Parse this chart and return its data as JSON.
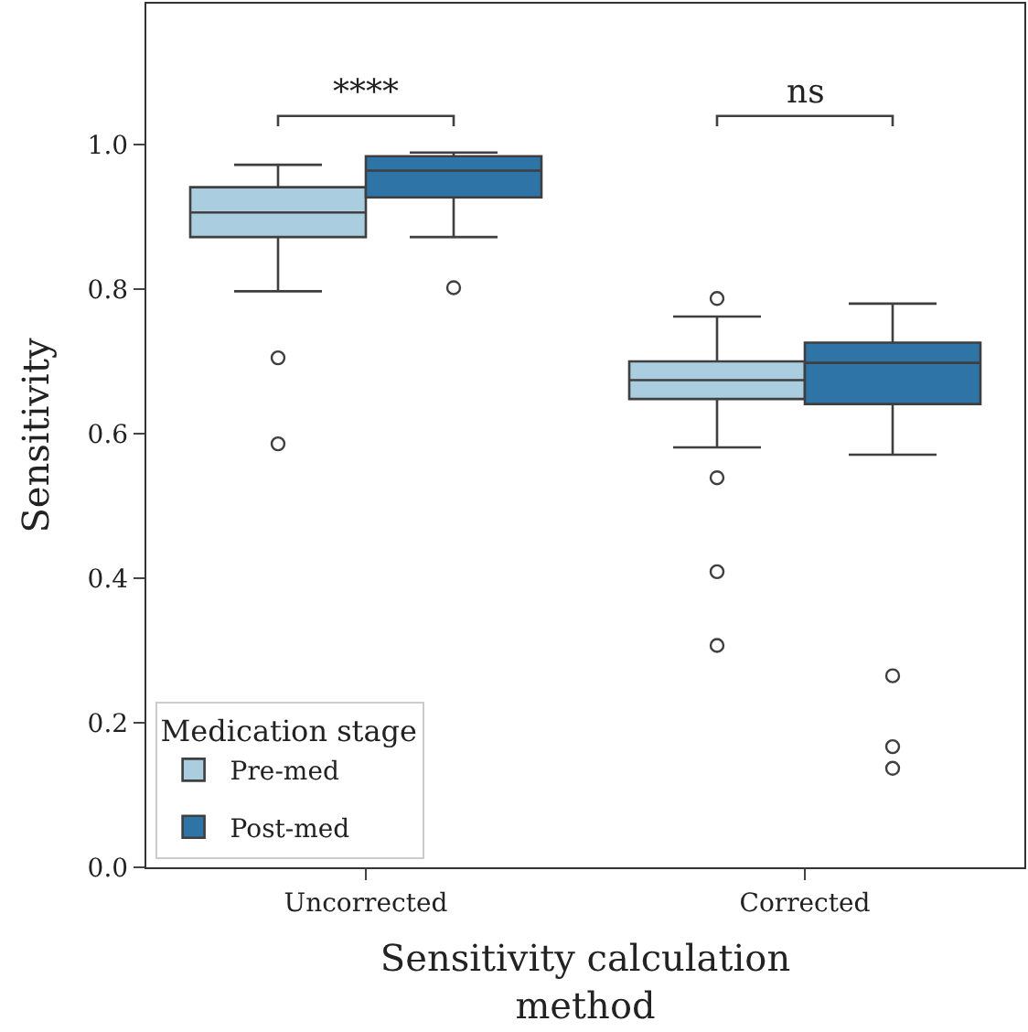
{
  "chart_data": {
    "type": "box",
    "categories": [
      "Uncorrected",
      "Corrected"
    ],
    "xlabel": "Sensitivity calculation\nmethod",
    "ylabel": "Sensitivity",
    "legend_title": "Medication stage",
    "ylim": [
      0,
      1.195
    ],
    "yticks": [
      {
        "value": 0,
        "label": "0.0"
      },
      0.2,
      0.4,
      0.6,
      0.8,
      {
        "value": 1,
        "label": "1.0"
      }
    ],
    "legend": "bottom left",
    "marker": "circle",
    "series": [
      {
        "name": "Pre-med",
        "color": "#abcde0",
        "boxes": [
          {
            "low": 0.797,
            "q1": 0.872,
            "median": 0.906,
            "q3": 0.941,
            "high": 0.972,
            "outliers": [
              0.705,
              0.586
            ]
          },
          {
            "low": 0.581,
            "q1": 0.648,
            "median": 0.674,
            "q3": 0.7,
            "high": 0.762,
            "outliers": [
              0.787,
              0.539,
              0.409,
              0.307
            ]
          }
        ]
      },
      {
        "name": "Post-med",
        "color": "#2f74a6",
        "boxes": [
          {
            "low": 0.872,
            "q1": 0.927,
            "median": 0.964,
            "q3": 0.984,
            "high": 0.989,
            "outliers": [
              0.802
            ]
          },
          {
            "low": 0.571,
            "q1": 0.641,
            "median": 0.698,
            "q3": 0.726,
            "high": 0.78,
            "outliers": [
              0.265,
              0.167,
              0.137
            ]
          }
        ]
      }
    ],
    "annotations": [
      "****",
      "ns"
    ]
  }
}
